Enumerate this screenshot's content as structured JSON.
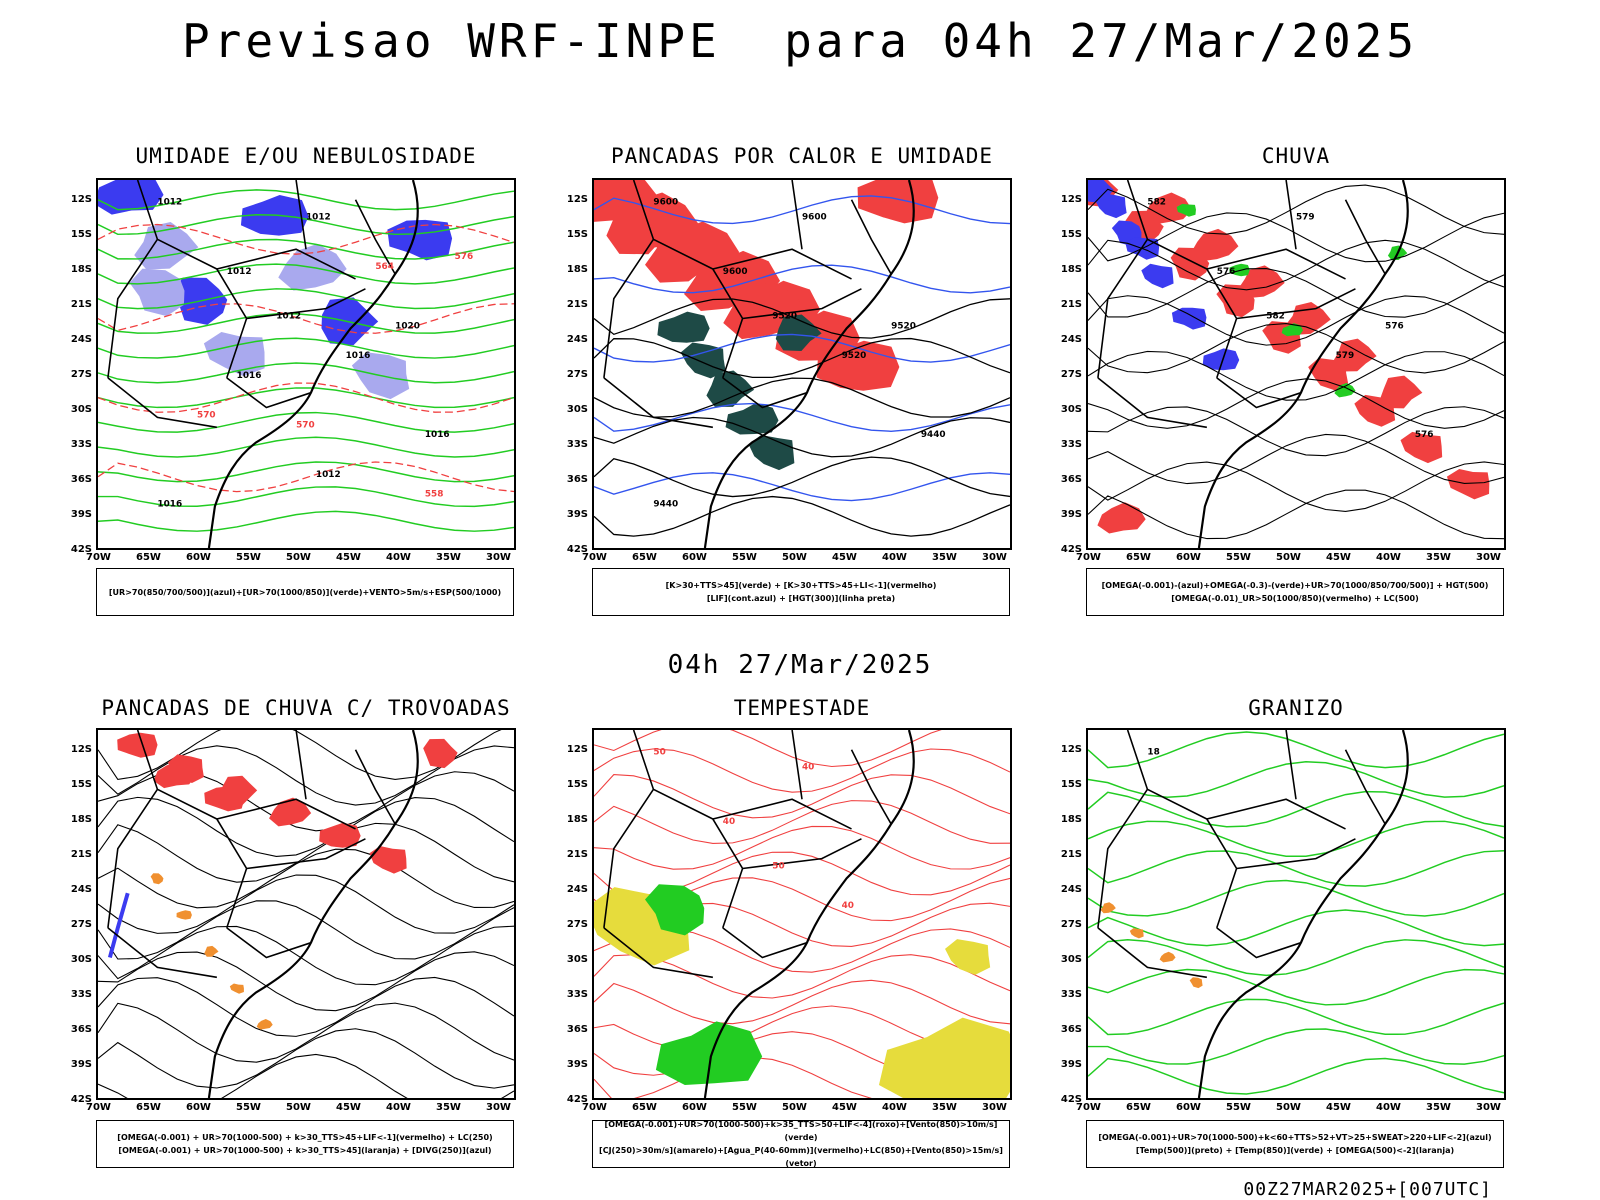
{
  "title": "Previsao WRF-INPE  para 04h 27/Mar/2025",
  "mid_date": "04h 27/Mar/2025",
  "footer": "00Z27MAR2025+[007UTC]",
  "axes": {
    "lat": [
      "12S",
      "15S",
      "18S",
      "21S",
      "24S",
      "27S",
      "30S",
      "33S",
      "36S",
      "39S",
      "42S"
    ],
    "lon": [
      "70W",
      "65W",
      "60W",
      "55W",
      "50W",
      "45W",
      "40W",
      "35W",
      "30W"
    ]
  },
  "colors": {
    "blue": "#3b3bf0",
    "lightblue": "#a9a9ee",
    "green": "#22cc22",
    "red": "#f04040",
    "darkgreen": "#1e4a46",
    "yellow": "#e6dc3c",
    "orange": "#f09030"
  },
  "panels": [
    {
      "title": "UMIDADE E/OU NEBULOSIDADE",
      "legend": [
        "[UR>70(850/700/500)](azul)+[UR>70(1000/850)](verde)+VENTO>5m/s+ESP(500/1000)"
      ],
      "labels": [
        "1012",
        "1012",
        "1012",
        "1012",
        "1016",
        "1016",
        "1020",
        "1016",
        "1012",
        "1016",
        "576",
        "570",
        "564",
        "570",
        "558"
      ]
    },
    {
      "title": "PANCADAS POR CALOR E UMIDADE",
      "legend": [
        "[K>30+TTS>45](verde) + [K>30+TTS>45+LI<-1](vermelho)",
        "[LIF](cont.azul) + [HGT(300)](linha preta)"
      ],
      "labels": [
        "9600",
        "9600",
        "9600",
        "9520",
        "9520",
        "9440",
        "9520",
        "9440"
      ]
    },
    {
      "title": "CHUVA",
      "legend": [
        "[OMEGA(-0.001)-(azul)+OMEGA(-0.3)-(verde)+UR>70(1000/850/700/500)] + HGT(500)",
        "[OMEGA(-0.01)_UR>50(1000/850)(vermelho) + LC(500)"
      ],
      "labels": [
        "582",
        "579",
        "576",
        "582",
        "579",
        "576",
        "576"
      ]
    },
    {
      "title": "PANCADAS DE CHUVA C/ TROVOADAS",
      "legend": [
        "[OMEGA(-0.001) + UR>70(1000-500) + k>30_TTS>45+LIF<-1](vermelho) + LC(250)",
        "[OMEGA(-0.001) + UR>70(1000-500) + k>30_TTS>45](laranja) + [DIVG(250)](azul)"
      ],
      "labels": []
    },
    {
      "title": "TEMPESTADE",
      "legend": [
        "[OMEGA(-0.001)+UR>70(1000-500)+k>35_TTS>50+LIF<-4](roxo)+[Vento(850)>10m/s](verde)",
        "[CJ(250)>30m/s](amarelo)+[Agua_P(40-60mm)](vermelho)+LC(850)+[Vento(850)>15m/s](vetor)"
      ],
      "labels": [
        "50",
        "40",
        "40",
        "50",
        "40"
      ]
    },
    {
      "title": "GRANIZO",
      "legend": [
        "[OMEGA(-0.001)+UR>70(1000-500)+k<60+TTS>52+VT>25+SWEAT>220+LIF<-2](azul)",
        "[Temp(500)](preto) + [Temp(850)](verde) + [OMEGA(500)<-2](laranja)"
      ],
      "labels": [
        "18"
      ]
    }
  ]
}
